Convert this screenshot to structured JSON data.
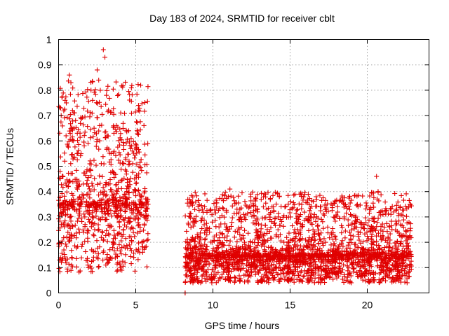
{
  "chart_data": {
    "type": "scatter",
    "title": "Day 183 of 2024, SRMTID for receiver cblt",
    "xlabel": "GPS time / hours",
    "ylabel": "SRMTID / TECUs",
    "xlim": [
      0,
      24
    ],
    "ylim": [
      0,
      1
    ],
    "x_ticks": [
      0,
      5,
      10,
      15,
      20
    ],
    "x_tick_labels": [
      "0",
      "5",
      "10",
      "15",
      "20"
    ],
    "y_ticks": [
      0,
      0.1,
      0.2,
      0.3,
      0.4,
      0.5,
      0.6,
      0.7,
      0.8,
      0.9,
      1
    ],
    "y_tick_labels": [
      "0",
      "0.1",
      "0.2",
      "0.3",
      "0.4",
      "0.5",
      "0.6",
      "0.7",
      "0.8",
      "0.9",
      "1"
    ],
    "grid": true,
    "marker": "+",
    "color": "#e00000",
    "series": [
      {
        "name": "SRMTID",
        "segments": [
          {
            "x_start": 0.0,
            "x_end": 5.8,
            "y_min": 0.08,
            "y_max": 0.96,
            "typical": 0.35
          },
          {
            "x_start": 8.2,
            "x_end": 8.2,
            "y_min": 0.0,
            "y_max": 0.0,
            "typical": 0.0
          },
          {
            "x_start": 8.2,
            "x_end": 22.9,
            "y_min": 0.04,
            "y_max": 0.46,
            "typical": 0.15
          }
        ],
        "points": [
          [
            0.1,
            0.48
          ],
          [
            0.2,
            0.35
          ],
          [
            0.3,
            0.27
          ],
          [
            0.4,
            0.52
          ],
          [
            0.5,
            0.75
          ],
          [
            0.6,
            0.58
          ],
          [
            0.7,
            0.86
          ],
          [
            0.8,
            0.83
          ],
          [
            0.9,
            0.72
          ],
          [
            1.0,
            0.65
          ],
          [
            1.1,
            0.68
          ],
          [
            1.2,
            0.55
          ],
          [
            1.3,
            0.42
          ],
          [
            1.5,
            0.36
          ],
          [
            1.7,
            0.3
          ],
          [
            1.9,
            0.11
          ],
          [
            2.1,
            0.8
          ],
          [
            2.2,
            0.76
          ],
          [
            2.3,
            0.65
          ],
          [
            2.5,
            0.88
          ],
          [
            2.6,
            0.84
          ],
          [
            2.8,
            0.32
          ],
          [
            2.9,
            0.96
          ],
          [
            3.0,
            0.93
          ],
          [
            3.1,
            0.78
          ],
          [
            3.2,
            0.62
          ],
          [
            3.4,
            0.55
          ],
          [
            3.6,
            0.47
          ],
          [
            3.8,
            0.4
          ],
          [
            4.0,
            0.3
          ],
          [
            4.2,
            0.25
          ],
          [
            4.4,
            0.34
          ],
          [
            4.6,
            0.44
          ],
          [
            4.7,
            0.61
          ],
          [
            4.8,
            0.56
          ],
          [
            5.0,
            0.33
          ],
          [
            5.2,
            0.27
          ],
          [
            5.4,
            0.2
          ],
          [
            5.6,
            0.18
          ],
          [
            5.8,
            0.35
          ],
          [
            8.2,
            0.0
          ],
          [
            8.4,
            0.14
          ],
          [
            8.7,
            0.21
          ],
          [
            9.0,
            0.13
          ],
          [
            9.3,
            0.1
          ],
          [
            9.6,
            0.17
          ],
          [
            9.9,
            0.06
          ],
          [
            10.2,
            0.12
          ],
          [
            10.5,
            0.15
          ],
          [
            10.8,
            0.12
          ],
          [
            11.0,
            0.38
          ],
          [
            11.1,
            0.41
          ],
          [
            11.4,
            0.22
          ],
          [
            11.7,
            0.25
          ],
          [
            12.0,
            0.31
          ],
          [
            12.2,
            0.34
          ],
          [
            12.5,
            0.12
          ],
          [
            12.8,
            0.15
          ],
          [
            13.1,
            0.13
          ],
          [
            13.4,
            0.39
          ],
          [
            13.6,
            0.18
          ],
          [
            13.9,
            0.06
          ],
          [
            14.1,
            0.08
          ],
          [
            14.3,
            0.38
          ],
          [
            14.6,
            0.2
          ],
          [
            14.9,
            0.08
          ],
          [
            15.2,
            0.12
          ],
          [
            15.5,
            0.1
          ],
          [
            15.8,
            0.13
          ],
          [
            16.1,
            0.18
          ],
          [
            16.4,
            0.21
          ],
          [
            16.7,
            0.15
          ],
          [
            17.0,
            0.34
          ],
          [
            17.3,
            0.2
          ],
          [
            17.6,
            0.17
          ],
          [
            17.9,
            0.1
          ],
          [
            18.2,
            0.12
          ],
          [
            18.5,
            0.3
          ],
          [
            18.8,
            0.14
          ],
          [
            19.1,
            0.12
          ],
          [
            19.4,
            0.34
          ],
          [
            19.7,
            0.17
          ],
          [
            20.0,
            0.16
          ],
          [
            20.3,
            0.23
          ],
          [
            20.6,
            0.46
          ],
          [
            20.7,
            0.4
          ],
          [
            21.0,
            0.16
          ],
          [
            21.3,
            0.2
          ],
          [
            21.6,
            0.25
          ],
          [
            21.9,
            0.33
          ],
          [
            22.2,
            0.09
          ],
          [
            22.5,
            0.13
          ],
          [
            22.8,
            0.35
          ]
        ]
      }
    ]
  }
}
